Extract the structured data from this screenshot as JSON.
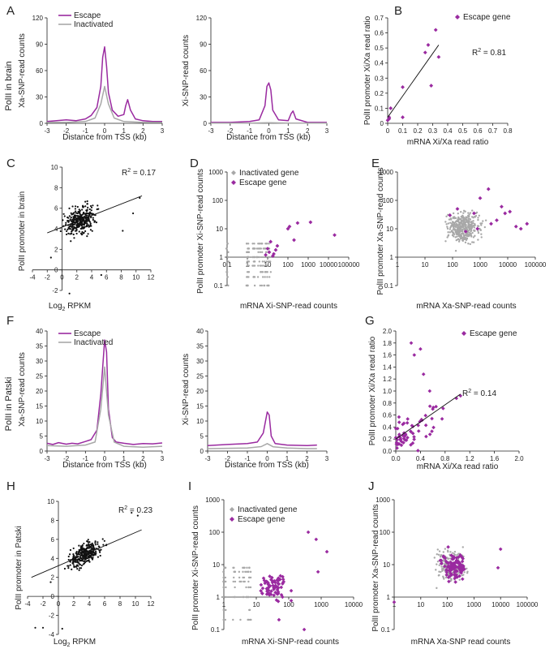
{
  "colors": {
    "escape": "#9a2aa0",
    "inactivated": "#a8a8a8",
    "axis": "#222222",
    "fit": "#111111"
  },
  "panel_letters": [
    "A",
    "B",
    "C",
    "D",
    "E",
    "F",
    "G",
    "H",
    "I",
    "J"
  ],
  "row_labels": {
    "brain": "PolII in brain",
    "patski": "PolII in Patski"
  },
  "chart_data": [
    {
      "id": "A1",
      "type": "line",
      "panel": "A",
      "xlabel": "Distance from TSS (kb)",
      "ylabel": "Xa-SNP-read counts",
      "xlim": [
        -3,
        3
      ],
      "ylim": [
        0,
        120
      ],
      "xticks": [
        -3,
        -2,
        -1,
        0,
        1,
        2,
        3
      ],
      "yticks": [
        0,
        30,
        60,
        90,
        120
      ],
      "legend": [
        "Escape",
        "Inactivated"
      ],
      "series": [
        {
          "name": "Escape",
          "x": [
            -3,
            -2.5,
            -2,
            -1.5,
            -1,
            -0.7,
            -0.4,
            -0.2,
            -0.1,
            0,
            0.1,
            0.2,
            0.4,
            0.7,
            1,
            1.1,
            1.2,
            1.35,
            1.6,
            2,
            2.5,
            3
          ],
          "y": [
            2,
            3,
            4,
            3,
            5,
            9,
            18,
            42,
            75,
            87,
            65,
            35,
            15,
            8,
            10,
            20,
            27,
            15,
            5,
            3,
            2,
            2
          ]
        },
        {
          "name": "Inactivated",
          "x": [
            -3,
            -2,
            -1,
            -0.5,
            -0.2,
            0,
            0.2,
            0.5,
            1,
            2,
            3
          ],
          "y": [
            1,
            1,
            2,
            6,
            22,
            42,
            22,
            6,
            2,
            1,
            1
          ]
        }
      ]
    },
    {
      "id": "A2",
      "type": "line",
      "panel": "A",
      "xlabel": "Distance from TSS (kb)",
      "ylabel": "Xi-SNP-read counts",
      "xlim": [
        -3,
        3
      ],
      "ylim": [
        0,
        120
      ],
      "xticks": [
        -3,
        -2,
        -1,
        0,
        1,
        2,
        3
      ],
      "yticks": [
        0,
        30,
        60,
        90,
        120
      ],
      "series": [
        {
          "name": "Escape",
          "x": [
            -3,
            -2,
            -1,
            -0.5,
            -0.2,
            -0.1,
            0,
            0.1,
            0.2,
            0.5,
            1,
            1.15,
            1.25,
            1.4,
            2,
            3
          ],
          "y": [
            1,
            1,
            2,
            4,
            20,
            42,
            46,
            38,
            15,
            4,
            3,
            11,
            14,
            5,
            1,
            1
          ]
        },
        {
          "name": "Inactivated",
          "x": [
            -3,
            -1,
            0,
            1,
            3
          ],
          "y": [
            0.3,
            0.3,
            0.6,
            0.3,
            0.3
          ]
        }
      ]
    },
    {
      "id": "B",
      "type": "scatter",
      "panel": "B",
      "xlabel": "mRNA Xi/Xa read ratio",
      "ylabel": "PolII promoter Xi/Xa read ratio",
      "xlim": [
        0,
        0.8
      ],
      "ylim": [
        0,
        0.7
      ],
      "xticks": [
        0,
        0.1,
        0.2,
        0.3,
        0.4,
        0.5,
        0.6,
        0.7,
        0.8
      ],
      "yticks": [
        0,
        0.1,
        0.2,
        0.3,
        0.4,
        0.5,
        0.6,
        0.7
      ],
      "legend": [
        "Escape gene"
      ],
      "annotation": "R",
      "annotation_sup": "2",
      "annotation_val": " = 0.81",
      "fit": [
        [
          0,
          0.04
        ],
        [
          0.34,
          0.52
        ]
      ],
      "series": [
        {
          "name": "Escape gene",
          "x": [
            0,
            0.01,
            0.02,
            0.01,
            0.1,
            0.1,
            0.25,
            0.27,
            0.29,
            0.32,
            0.34
          ],
          "y": [
            0.02,
            0.03,
            0.1,
            0.04,
            0.24,
            0.04,
            0.47,
            0.52,
            0.25,
            0.62,
            0.44
          ]
        }
      ]
    },
    {
      "id": "C",
      "type": "scatter",
      "panel": "C",
      "xlabel": "Log",
      "xlabel_sub": "2",
      "xlabel_rest": " RPKM",
      "ylabel": "PolII promoter in brain",
      "xlim": [
        -4,
        12
      ],
      "ylim": [
        -2,
        10
      ],
      "xticks": [
        -4,
        -2,
        0,
        2,
        4,
        6,
        8,
        10,
        12
      ],
      "yticks": [
        -2,
        0,
        2,
        4,
        6,
        8,
        10
      ],
      "annotation": "R",
      "annotation_sup": "2",
      "annotation_val": " = 0.17",
      "fit": [
        [
          -2,
          3.6
        ],
        [
          10.8,
          7.2
        ]
      ]
    },
    {
      "id": "D",
      "type": "scatter",
      "panel": "D",
      "xlabel": "mRNA Xi-SNP-read counts",
      "ylabel": "PolII promoter Xi-SNP-read counts",
      "log": true,
      "xticks": [
        "0.1",
        "1",
        "10",
        "100",
        "1000",
        "10000",
        "100000"
      ],
      "yticks": [
        "0.1",
        "1",
        "10",
        "100",
        "1000"
      ],
      "legend": [
        "Inactivated gene",
        "Escape gene"
      ],
      "series": [
        {
          "name": "Escape gene",
          "x": [
            8,
            10,
            12,
            14,
            18,
            20,
            25,
            30,
            100,
            120,
            200,
            300,
            1300,
            20000
          ],
          "y": [
            1.2,
            2,
            1.5,
            3.5,
            1.1,
            1.3,
            1.8,
            2.5,
            10,
            12,
            4,
            16,
            17,
            6
          ]
        }
      ]
    },
    {
      "id": "E",
      "type": "scatter",
      "panel": "E",
      "xlabel": "mRNA Xa-SNP-read counts",
      "ylabel": "PolII promoter Xa-SNP-read counts",
      "log": true,
      "xticks": [
        "1",
        "10",
        "100",
        "1000",
        "10000",
        "100000"
      ],
      "yticks": [
        "0.1",
        "1",
        "10",
        "100",
        "1000"
      ],
      "series": [
        {
          "name": "Escape gene",
          "x": [
            80,
            150,
            300,
            600,
            800,
            1000,
            2000,
            2500,
            4000,
            6000,
            8000,
            12000,
            20000,
            30000,
            50000
          ],
          "y": [
            30,
            50,
            8,
            35,
            10,
            120,
            250,
            15,
            20,
            60,
            35,
            40,
            12,
            10,
            15
          ]
        }
      ]
    },
    {
      "id": "F1",
      "type": "line",
      "panel": "F",
      "xlabel": "Distance from TSS (kb)",
      "ylabel": "Xa-SNP-read counts",
      "xlim": [
        -3,
        3
      ],
      "ylim": [
        0,
        40
      ],
      "xticks": [
        -3,
        -2,
        -1,
        0,
        1,
        2,
        3
      ],
      "yticks": [
        0,
        5,
        10,
        15,
        20,
        25,
        30,
        35,
        40
      ],
      "legend": [
        "Escape",
        "Inactivated"
      ],
      "series": [
        {
          "name": "Escape",
          "x": [
            -3,
            -2.7,
            -2.4,
            -2,
            -1.7,
            -1.4,
            -1,
            -0.7,
            -0.4,
            -0.2,
            0,
            0.1,
            0.2,
            0.4,
            0.6,
            1,
            1.5,
            2,
            2.5,
            3
          ],
          "y": [
            2.6,
            2.2,
            2.8,
            2.3,
            2.6,
            2.4,
            3.2,
            3.8,
            7,
            19,
            37,
            33,
            14,
            4.5,
            3,
            2.6,
            2.2,
            2.5,
            2.4,
            2.7
          ]
        },
        {
          "name": "Inactivated",
          "x": [
            -3,
            -2,
            -1,
            -0.5,
            -0.2,
            0,
            0.2,
            0.5,
            1,
            2,
            3
          ],
          "y": [
            1.8,
            1.6,
            2,
            3,
            14,
            28,
            12,
            3,
            1.6,
            1.3,
            1.6
          ]
        }
      ]
    },
    {
      "id": "F2",
      "type": "line",
      "panel": "F",
      "xlabel": "Distance from TSS (kb)",
      "ylabel": "Xi-SNP-read counts",
      "xlim": [
        -3,
        3
      ],
      "ylim": [
        0,
        40
      ],
      "xticks": [
        -3,
        -2,
        -1,
        0,
        1,
        2,
        3
      ],
      "yticks": [
        0,
        5,
        10,
        15,
        20,
        25,
        30,
        35,
        40
      ],
      "series": [
        {
          "name": "Escape",
          "x": [
            -3,
            -2,
            -1,
            -0.5,
            -0.2,
            0,
            0.1,
            0.2,
            0.4,
            1,
            2,
            2.5
          ],
          "y": [
            1.8,
            2.2,
            2.5,
            3,
            6,
            13,
            12,
            5,
            2.5,
            2,
            1.8,
            2
          ]
        },
        {
          "name": "Inactivated",
          "x": [
            -3,
            -1,
            -0.3,
            0,
            0.3,
            1,
            2,
            2.5
          ],
          "y": [
            0.8,
            1,
            1.5,
            2.5,
            1.4,
            1,
            0.8,
            0.8
          ]
        }
      ]
    },
    {
      "id": "G",
      "type": "scatter",
      "panel": "G",
      "xlabel": "mRNA Xi/Xa read ratio",
      "ylabel": "PolII promoter Xi/Xa read ratio",
      "xlim": [
        0,
        2
      ],
      "ylim": [
        0,
        2
      ],
      "xticks": [
        0,
        0.4,
        0.8,
        1.2,
        1.6,
        2
      ],
      "yticks": [
        0,
        0.2,
        0.4,
        0.6,
        0.8,
        1,
        1.2,
        1.4,
        1.6,
        1.8,
        2
      ],
      "xtick_labels": [
        "0.0",
        "0.4",
        "0.8",
        "1.2",
        "1.6",
        "2.0"
      ],
      "ytick_labels": [
        "0.0",
        "0.2",
        "0.4",
        "0.6",
        "0.8",
        "1.0",
        "1.2",
        "1.4",
        "1.6",
        "1.8",
        "2.0"
      ],
      "legend": [
        "Escape gene"
      ],
      "annotation": "R",
      "annotation_sup": "2",
      "annotation_val": " = 0.14",
      "fit": [
        [
          0,
          0.2
        ],
        [
          1.05,
          0.95
        ]
      ]
    },
    {
      "id": "H",
      "type": "scatter",
      "panel": "H",
      "xlabel": "Log",
      "xlabel_sub": "2",
      "xlabel_rest": " RPKM",
      "ylabel": "PolII promoter in Patski",
      "xlim": [
        -4,
        12
      ],
      "ylim": [
        -4,
        10
      ],
      "xticks": [
        -4,
        -2,
        0,
        2,
        4,
        6,
        8,
        10,
        12
      ],
      "yticks": [
        -4,
        -2,
        0,
        2,
        4,
        6,
        8,
        10
      ],
      "annotation": "R",
      "annotation_sup": "2",
      "annotation_val": " = 0.23",
      "fit": [
        [
          -3.5,
          2
        ],
        [
          10.8,
          7
        ]
      ]
    },
    {
      "id": "I",
      "type": "scatter",
      "panel": "I",
      "xlabel": "mRNA Xi-SNP-read counts",
      "ylabel": "PolII promoter Xi-SNP-read counts",
      "log": true,
      "xticks": [
        "1",
        "10",
        "100",
        "1000",
        "10000"
      ],
      "yticks": [
        "0.1",
        "1",
        "10",
        "100",
        "1000"
      ],
      "legend": [
        "Inactivated gene",
        "Escape gene"
      ]
    },
    {
      "id": "J",
      "type": "scatter",
      "panel": "J",
      "xlabel": "mRNA Xa-SNP read counts",
      "ylabel": "PolII promoter Xa-SNP-read counts",
      "log": true,
      "xticks": [
        "1",
        "10",
        "100",
        "1000",
        "10000",
        "100000"
      ],
      "yticks": [
        "0.1",
        "1",
        "10",
        "100",
        "1000"
      ]
    }
  ]
}
